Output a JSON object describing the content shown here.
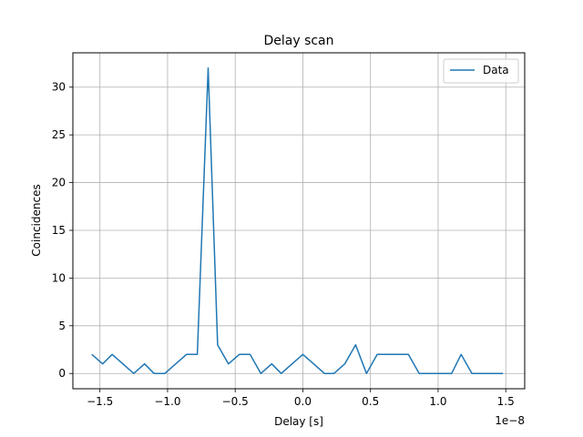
{
  "chart_data": {
    "type": "line",
    "title": "Delay scan",
    "xlabel": "Delay [s]",
    "ylabel": "Coincidences",
    "x_offset_text": "1e−8",
    "xlim": [
      -1.7,
      1.64
    ],
    "ylim": [
      -1.6,
      33.6
    ],
    "xticks": [
      -1.5,
      -1.0,
      -0.5,
      0.0,
      0.5,
      1.0,
      1.5
    ],
    "xtick_labels": [
      "−1.5",
      "−1.0",
      "−0.5",
      "0.0",
      "0.5",
      "1.0",
      "1.5"
    ],
    "yticks": [
      0,
      5,
      10,
      15,
      20,
      25,
      30
    ],
    "ytick_labels": [
      "0",
      "5",
      "10",
      "15",
      "20",
      "25",
      "30"
    ],
    "grid": true,
    "legend": {
      "position": "top-right",
      "entries": [
        "Data"
      ]
    },
    "series": [
      {
        "name": "Data",
        "color": "#1f77b4",
        "x": [
          -1.56,
          -1.48,
          -1.41,
          -1.33,
          -1.25,
          -1.17,
          -1.1,
          -1.02,
          -0.94,
          -0.86,
          -0.78,
          -0.7,
          -0.63,
          -0.55,
          -0.47,
          -0.39,
          -0.31,
          -0.23,
          -0.16,
          -0.08,
          0.0,
          0.08,
          0.16,
          0.23,
          0.31,
          0.39,
          0.47,
          0.55,
          0.63,
          0.7,
          0.78,
          0.86,
          0.94,
          1.02,
          1.1,
          1.17,
          1.25,
          1.33,
          1.41,
          1.48
        ],
        "y": [
          2,
          1,
          2,
          1,
          0,
          1,
          0,
          0,
          1,
          2,
          2,
          32,
          3,
          1,
          2,
          2,
          0,
          1,
          0,
          1,
          2,
          1,
          0,
          0,
          1,
          3,
          0,
          2,
          2,
          2,
          2,
          0,
          0,
          0,
          0,
          2,
          0,
          0,
          0,
          0
        ]
      }
    ]
  }
}
